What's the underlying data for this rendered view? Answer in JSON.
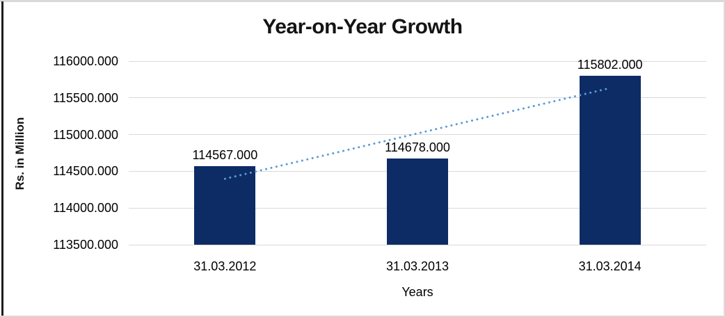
{
  "chart_data": {
    "type": "bar",
    "title": "Year-on-Year Growth",
    "xlabel": "Years",
    "ylabel": "Rs. in Million",
    "categories": [
      "31.03.2012",
      "31.03.2013",
      "31.03.2014"
    ],
    "values": [
      114567,
      114678,
      115802
    ],
    "data_labels": [
      "114567.000",
      "114678.000",
      "115802.000"
    ],
    "ylim": [
      113500,
      116000
    ],
    "ytick_step": 500,
    "ytick_labels": [
      "113500.000",
      "114000.000",
      "114500.000",
      "115000.000",
      "115500.000",
      "116000.000"
    ],
    "grid": true,
    "legend_position": "none",
    "trendline": {
      "type": "linear",
      "style": "dotted"
    },
    "colors": {
      "bar": "#0d2c66",
      "trendline": "#5b9bd5",
      "gridline": "#d9d9d9",
      "text": "#000000",
      "title": "#141414"
    }
  }
}
